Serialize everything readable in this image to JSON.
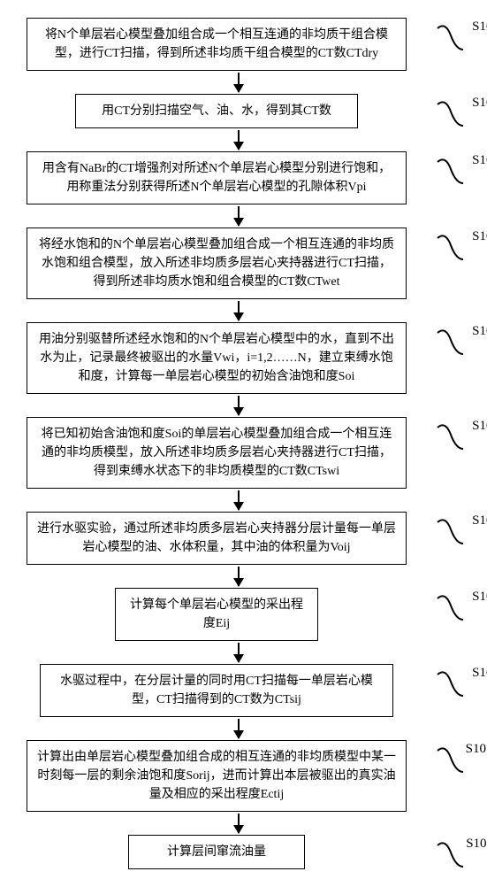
{
  "diagram": {
    "font_family": "SimSun",
    "font_size_box": 14,
    "font_size_label": 15,
    "line_color": "#000000",
    "background": "#ffffff",
    "box_border_width": 1.5,
    "arrow_head": {
      "width": 12,
      "height": 10
    },
    "wave_stroke": "#000000",
    "wave_stroke_width": 2,
    "steps": [
      {
        "id": "S101",
        "width": "wide",
        "text": "将N个单层岩心模型叠加组合成一个相互连通的非均质干组合模型，进行CT扫描，得到所述非均质干组合模型的CT数CTdry"
      },
      {
        "id": "S102",
        "width": "narrow",
        "text": "用CT分别扫描空气、油、水，得到其CT数"
      },
      {
        "id": "S103",
        "width": "wide",
        "text": "用含有NaBr的CT增强剂对所述N个单层岩心模型分别进行饱和，用称重法分别获得所述N个单层岩心模型的孔隙体积Vpi"
      },
      {
        "id": "S104",
        "width": "wide",
        "text": "将经水饱和的N个单层岩心模型叠加组合成一个相互连通的非均质水饱和组合模型，放入所述非均质多层岩心夹持器进行CT扫描，得到所述非均质水饱和组合模型的CT数CTwet"
      },
      {
        "id": "S105",
        "width": "wide",
        "text": "用油分别驱替所述经水饱和的N个单层岩心模型中的水，直到不出水为止，记录最终被驱出的水量Vwi，i=1,2……N，建立束缚水饱和度，计算每一单层岩心模型的初始含油饱和度Soi"
      },
      {
        "id": "S106",
        "width": "wide",
        "text": "将已知初始含油饱和度Soi的单层岩心模型叠加组合成一个相互连通的非均质模型，放入所述非均质多层岩心夹持器进行CT扫描，得到束缚水状态下的非均质模型的CT数CTswi"
      },
      {
        "id": "S107",
        "width": "wide",
        "text": "进行水驱实验，通过所述非均质多层岩心夹持器分层计量每一单层岩心模型的油、水体积量，其中油的体积量为Voij"
      },
      {
        "id": "S108",
        "width": "small",
        "text": "计算每个单层岩心模型的采出程度Eij"
      },
      {
        "id": "S109",
        "width": "med",
        "text": "水驱过程中，在分层计量的同时用CT扫描每一单层岩心模型，CT扫描得到的CT数为CTsij"
      },
      {
        "id": "S1010",
        "width": "wide",
        "text": "计算出由单层岩心模型叠加组合成的相互连通的非均质模型中某一时刻每一层的剩余油饱和度Sorij，进而计算出本层被驱出的真实油量及相应的采出程度Ectij"
      },
      {
        "id": "S1011",
        "width": "last",
        "text": "计算层间窜流油量"
      }
    ]
  }
}
